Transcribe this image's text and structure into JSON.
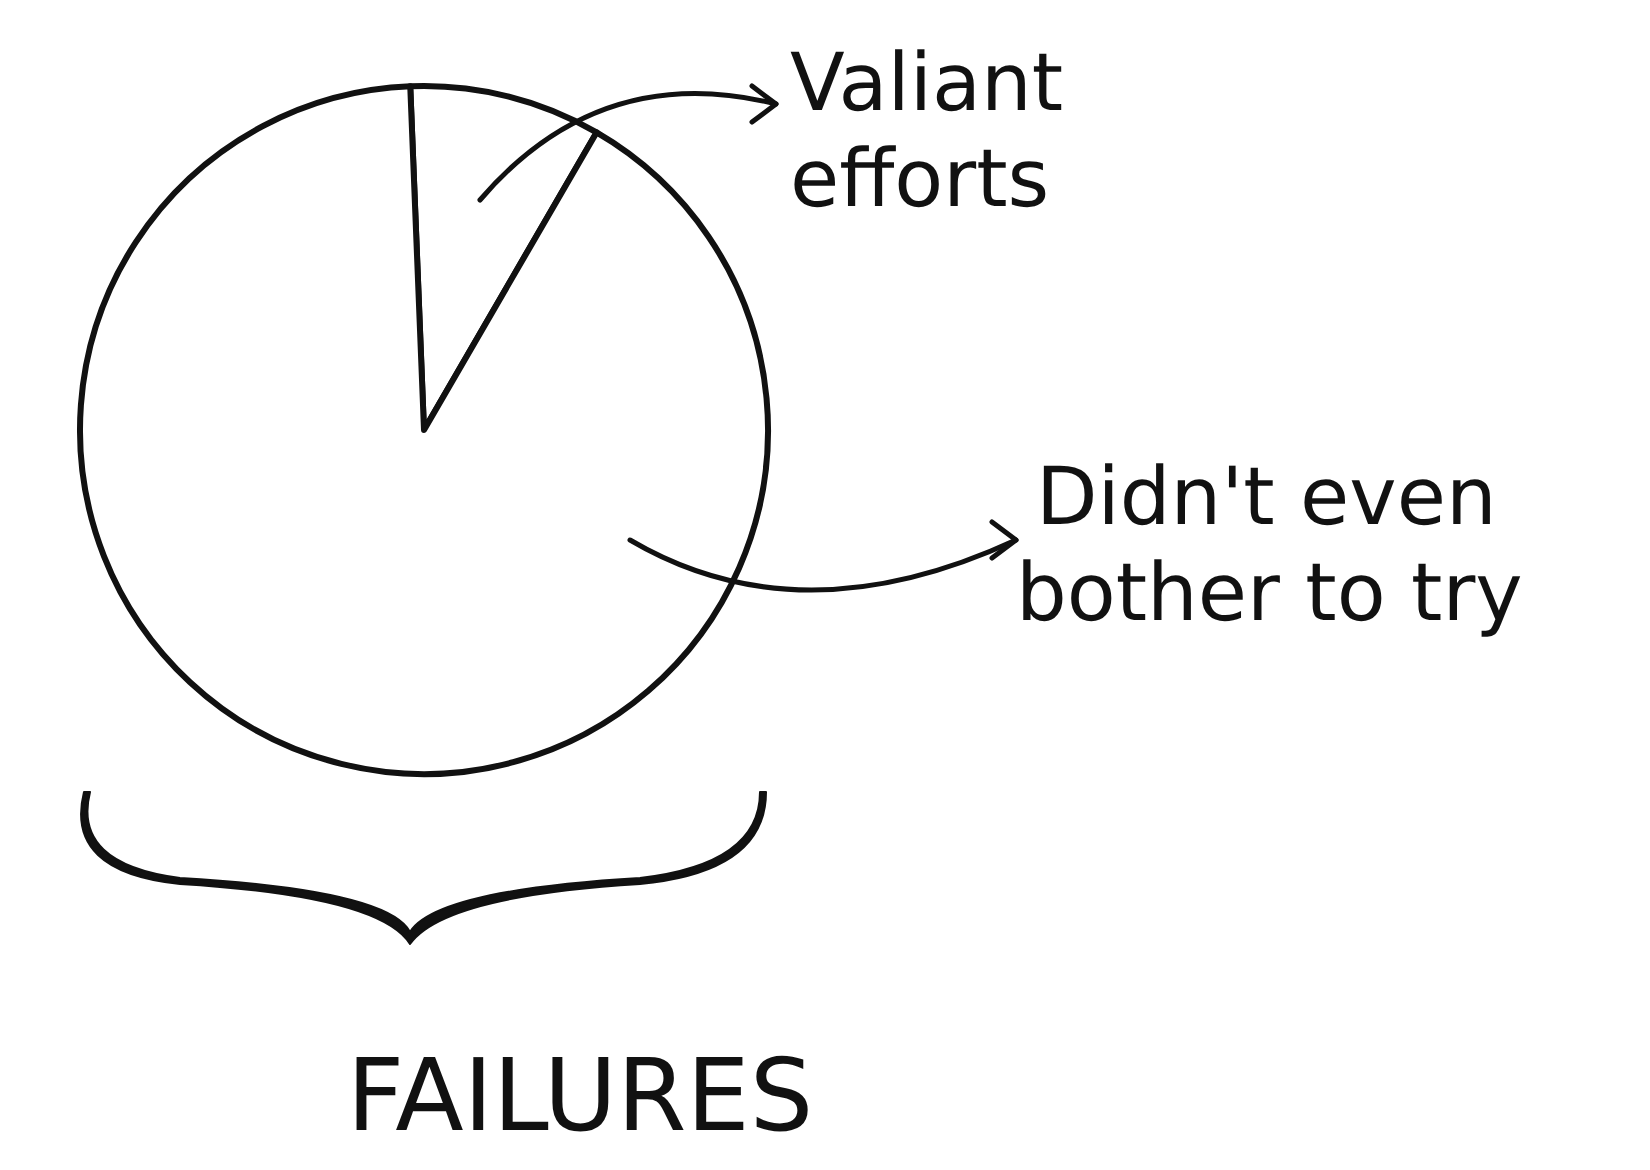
{
  "chart_data": {
    "type": "pie",
    "title": "FAILURES",
    "categories": [
      "Valiant efforts",
      "Didn't even bother to try"
    ],
    "values": [
      9,
      91
    ],
    "colors": [
      "#ffffff",
      "#ffffff"
    ],
    "legend": "right"
  }
}
